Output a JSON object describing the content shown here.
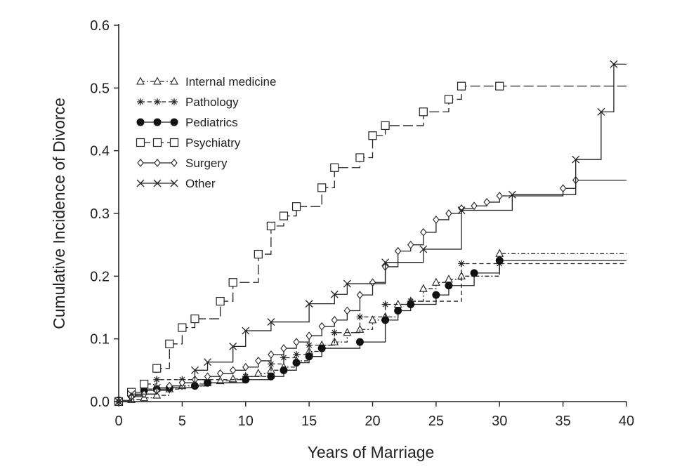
{
  "chart_data": {
    "type": "line",
    "title": "",
    "xlabel": "Years of Marriage",
    "ylabel": "Cumulative Incidence of Divorce",
    "xlim": [
      0,
      40
    ],
    "ylim": [
      0,
      0.6
    ],
    "x_ticks": [
      0,
      5,
      10,
      15,
      20,
      25,
      30,
      35,
      40
    ],
    "y_ticks": [
      0.0,
      0.1,
      0.2,
      0.3,
      0.4,
      0.5,
      0.6
    ],
    "x_tick_labels": [
      "0",
      "5",
      "10",
      "15",
      "20",
      "25",
      "30",
      "35",
      "40"
    ],
    "y_tick_labels": [
      "0.0",
      "0.1",
      "0.2",
      "0.3",
      "0.4",
      "0.5",
      "0.6"
    ],
    "grid": false,
    "legend_position": "top-left",
    "step": true,
    "series": [
      {
        "name": "Internal medicine",
        "marker": "open-triangle",
        "line_style": "dash-dot",
        "x": [
          0,
          1,
          2,
          3,
          4,
          5,
          6,
          7,
          8,
          9,
          10,
          11,
          12,
          13,
          14,
          15,
          16,
          17,
          18,
          19,
          20,
          21,
          22,
          23,
          24,
          25,
          26,
          27,
          30,
          40
        ],
        "y": [
          0.0,
          0.003,
          0.006,
          0.01,
          0.02,
          0.025,
          0.028,
          0.03,
          0.033,
          0.036,
          0.04,
          0.045,
          0.05,
          0.055,
          0.065,
          0.08,
          0.09,
          0.095,
          0.11,
          0.115,
          0.13,
          0.135,
          0.155,
          0.16,
          0.18,
          0.19,
          0.195,
          0.2,
          0.236,
          0.236
        ]
      },
      {
        "name": "Pathology",
        "marker": "star",
        "line_style": "dashed",
        "x": [
          0,
          1,
          2,
          3,
          5,
          10,
          12,
          13,
          14,
          15,
          17,
          19,
          21,
          23,
          27,
          30,
          40
        ],
        "y": [
          0.0,
          0.01,
          0.02,
          0.035,
          0.035,
          0.04,
          0.06,
          0.07,
          0.075,
          0.09,
          0.11,
          0.135,
          0.155,
          0.16,
          0.22,
          0.22,
          0.22
        ]
      },
      {
        "name": "Pediatrics",
        "marker": "filled-circle",
        "line_style": "solid",
        "x": [
          0,
          1,
          2,
          3,
          4,
          6,
          7,
          10,
          12,
          13,
          14,
          15,
          16,
          19,
          21,
          22,
          23,
          25,
          26,
          28,
          30,
          40
        ],
        "y": [
          0.002,
          0.01,
          0.018,
          0.02,
          0.022,
          0.025,
          0.03,
          0.035,
          0.04,
          0.05,
          0.062,
          0.072,
          0.085,
          0.095,
          0.13,
          0.145,
          0.155,
          0.17,
          0.185,
          0.205,
          0.225,
          0.225
        ]
      },
      {
        "name": "Psychiatry",
        "marker": "open-square",
        "line_style": "long-dash",
        "x": [
          0,
          1,
          2,
          3,
          4,
          5,
          6,
          8,
          9,
          11,
          12,
          13,
          14,
          16,
          17,
          19,
          20,
          21,
          24,
          26,
          27,
          30,
          40
        ],
        "y": [
          0.0,
          0.015,
          0.028,
          0.053,
          0.092,
          0.118,
          0.132,
          0.16,
          0.19,
          0.235,
          0.28,
          0.296,
          0.311,
          0.341,
          0.373,
          0.389,
          0.424,
          0.44,
          0.462,
          0.482,
          0.503,
          0.503,
          0.503
        ]
      },
      {
        "name": "Surgery",
        "marker": "open-diamond",
        "line_style": "solid",
        "x": [
          0,
          1,
          2,
          3,
          4,
          5,
          6,
          7,
          8,
          9,
          10,
          11,
          12,
          13,
          14,
          15,
          16,
          17,
          18,
          19,
          20,
          21,
          22,
          23,
          24,
          25,
          26,
          27,
          28,
          29,
          30,
          35,
          36,
          40
        ],
        "y": [
          0.0,
          0.008,
          0.012,
          0.018,
          0.025,
          0.03,
          0.035,
          0.04,
          0.045,
          0.05,
          0.055,
          0.065,
          0.075,
          0.085,
          0.095,
          0.105,
          0.12,
          0.13,
          0.145,
          0.17,
          0.19,
          0.215,
          0.24,
          0.25,
          0.27,
          0.29,
          0.3,
          0.308,
          0.312,
          0.318,
          0.328,
          0.34,
          0.353,
          0.353
        ]
      },
      {
        "name": "Other",
        "marker": "x",
        "line_style": "solid",
        "x": [
          0,
          1,
          3,
          6,
          7,
          9,
          10,
          12,
          15,
          17,
          18,
          21,
          24,
          27,
          31,
          36,
          38,
          39,
          40
        ],
        "y": [
          0.0,
          0.012,
          0.022,
          0.05,
          0.063,
          0.088,
          0.113,
          0.127,
          0.156,
          0.171,
          0.188,
          0.222,
          0.243,
          0.305,
          0.33,
          0.386,
          0.462,
          0.538,
          0.538
        ]
      }
    ]
  }
}
